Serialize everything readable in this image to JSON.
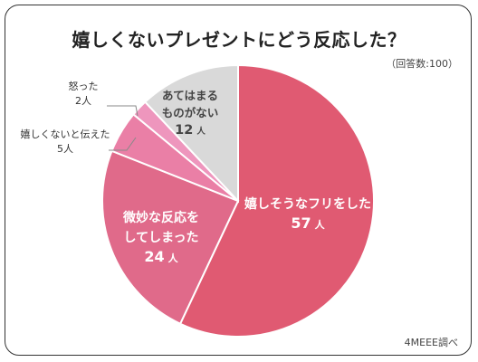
{
  "title": "嬉しくないプレゼントにどう反応した？",
  "note": "（回答数:100）",
  "source": "4MEEE調べ",
  "chart_data": {
    "type": "pie",
    "title": "嬉しくないプレゼントにどう反応した？",
    "total": 100,
    "unit": "人",
    "slices": [
      {
        "label": "嬉しそうなフリをした",
        "value": 57,
        "color": "#e05a72"
      },
      {
        "label": "微妙な反応をしてしまった",
        "value": 24,
        "color": "#e06a8a"
      },
      {
        "label": "嬉しくないと伝えた",
        "value": 5,
        "color": "#ea7fa6"
      },
      {
        "label": "怒った",
        "value": 2,
        "color": "#ee96bd"
      },
      {
        "label": "あてはまるものがない",
        "value": 12,
        "color": "#d9d9d9"
      }
    ],
    "labels": [
      {
        "lines": [
          "嬉しそうなフリをした"
        ],
        "value": "57",
        "unit": "人"
      },
      {
        "lines": [
          "微妙な反応を",
          "してしまった"
        ],
        "value": "24",
        "unit": "人"
      },
      {
        "lines": [
          "嬉しくないと伝えた"
        ],
        "value": "5",
        "unit": "人"
      },
      {
        "lines": [
          "怒った"
        ],
        "value": "2",
        "unit": "人"
      },
      {
        "lines": [
          "あてはまる",
          "ものがない"
        ],
        "value": "12",
        "unit": "人"
      }
    ]
  }
}
